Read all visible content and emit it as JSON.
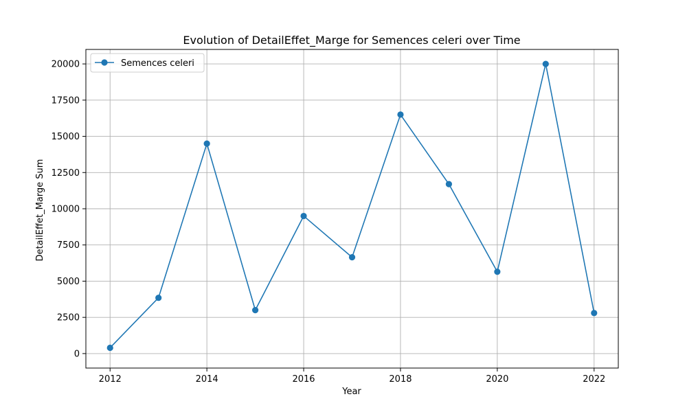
{
  "chart_data": {
    "type": "line",
    "title": "Evolution of DetailEffet_Marge for Semences celeri over Time",
    "xlabel": "Year",
    "ylabel": "DetailEffet_Marge Sum",
    "x": [
      2012,
      2013,
      2014,
      2015,
      2016,
      2017,
      2018,
      2019,
      2020,
      2021,
      2022
    ],
    "series": [
      {
        "name": "Semences celeri",
        "color": "#1f77b4",
        "marker": "circle",
        "values": [
          400,
          3850,
          14500,
          3000,
          9500,
          6650,
          16500,
          11700,
          5650,
          20000,
          2800
        ]
      }
    ],
    "xlim": [
      2011.5,
      2022.5
    ],
    "ylim": [
      -1000,
      21000
    ],
    "xticks": [
      2012,
      2014,
      2016,
      2018,
      2020,
      2022
    ],
    "xtick_labels": [
      "2012",
      "2014",
      "2016",
      "2018",
      "2020",
      "2022"
    ],
    "yticks": [
      0,
      2500,
      5000,
      7500,
      10000,
      12500,
      15000,
      17500,
      20000
    ],
    "ytick_labels": [
      "0",
      "2500",
      "5000",
      "7500",
      "10000",
      "12500",
      "15000",
      "17500",
      "20000"
    ],
    "grid": true,
    "legend_position": "upper left",
    "grid_color": "#b0b0b0"
  }
}
